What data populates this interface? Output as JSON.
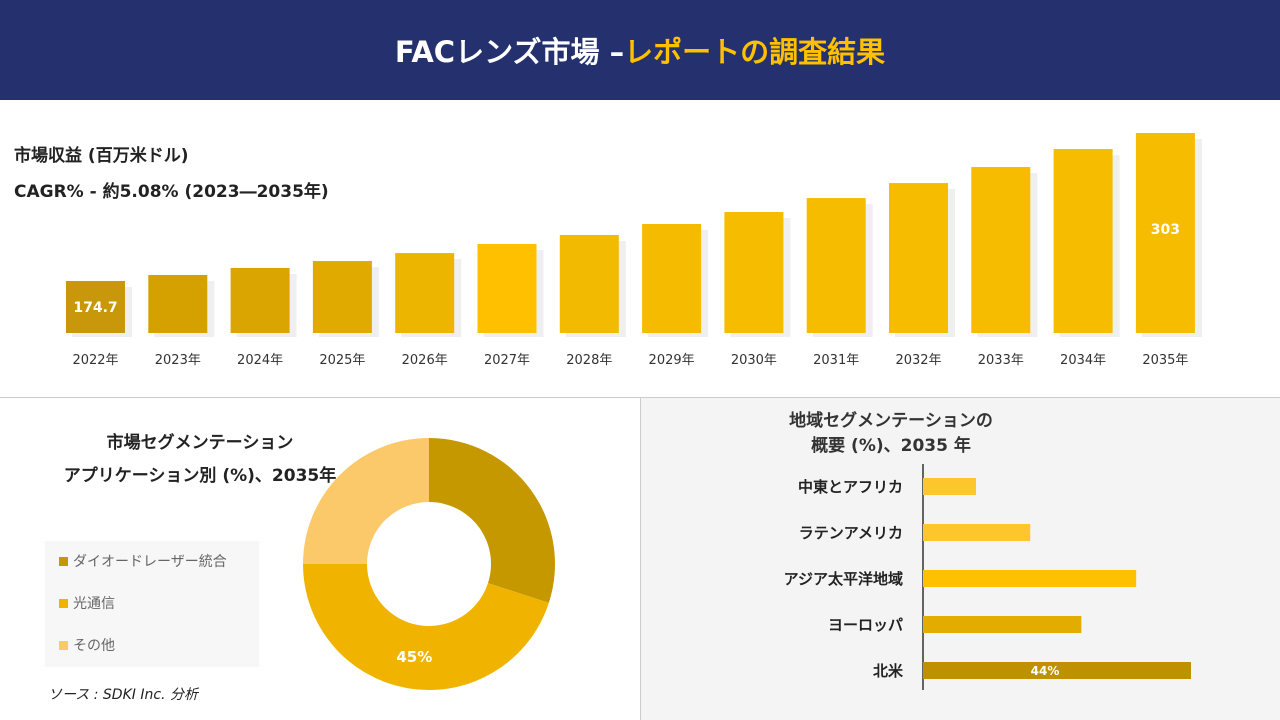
{
  "header": {
    "title_white": "FACレンズ市場 –",
    "title_yellow": "レポートの調査結果"
  },
  "revenue": {
    "label": "市場収益 (百万米ドル)",
    "cagr": "CAGR% - 約5.08% (2023―2035年)"
  },
  "chart_data": [
    {
      "type": "bar",
      "categories": [
        "2022年",
        "2023年",
        "2024年",
        "2025年",
        "2026年",
        "2027年",
        "2028年",
        "2029年",
        "2030年",
        "2031年",
        "2032年",
        "2033年",
        "2034年",
        "2035年"
      ],
      "values": [
        174.7,
        179.9,
        186.0,
        192.0,
        198.9,
        206.8,
        214.6,
        224.1,
        234.5,
        246.6,
        259.6,
        273.5,
        289.1,
        303
      ],
      "data_labels": {
        "0": "174.7",
        "13": "303"
      },
      "colors": [
        "#c9970a",
        "#d5a100",
        "#daa500",
        "#e0aa00",
        "#ecb600",
        "#ffc000",
        "#f2ba00",
        "#f4bb00",
        "#f5bc00",
        "#f5bc00",
        "#f5bc00",
        "#f5bc00",
        "#f5bc00",
        "#f5bc00"
      ],
      "grid": false
    },
    {
      "type": "pie",
      "title": "市場セグメンテーション アプリケーション別 (%)、2035年",
      "title_lines": [
        "市場セグメンテーション",
        "アプリケーション別 (%)、2035年"
      ],
      "categories": [
        "ダイオードレーザー統合",
        "光通信",
        "その他"
      ],
      "values": [
        30,
        45,
        25
      ],
      "colors": [
        "#c69800",
        "#f0b400",
        "#fcc96a"
      ],
      "data_labels": {
        "1": "45%"
      },
      "legend": "left"
    },
    {
      "type": "bar",
      "orientation": "horizontal",
      "title_lines": [
        "地域セグメンテーションの",
        "概要 (%)、2035 年"
      ],
      "categories": [
        "中東とアフリカ",
        "ラテンアメリカ",
        "アジア太平洋地域",
        "ヨーロッパ",
        "北米"
      ],
      "values": [
        8.7,
        17.6,
        35,
        26,
        44
      ],
      "data_labels": {
        "4": "44%"
      },
      "colors": [
        "#fcc62c",
        "#fcc62c",
        "#ffc000",
        "#e2ac00",
        "#bf9000"
      ]
    }
  ],
  "source": "ソース : SDKI Inc. 分析"
}
